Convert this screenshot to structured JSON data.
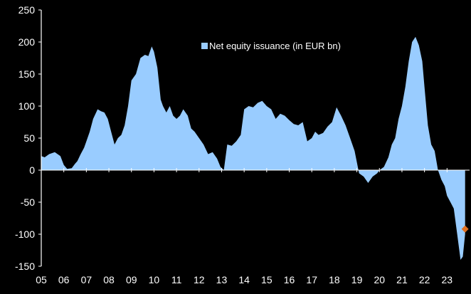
{
  "chart_data": {
    "type": "area",
    "title": "",
    "xlabel": "",
    "ylabel": "",
    "ylim": [
      -150,
      250
    ],
    "xlim": [
      2005.0,
      2024.0
    ],
    "yticks": [
      250,
      200,
      150,
      100,
      50,
      0,
      -50,
      -100,
      -150
    ],
    "xtick_labels": [
      "05",
      "06",
      "07",
      "08",
      "09",
      "10",
      "11",
      "12",
      "13",
      "14",
      "15",
      "16",
      "17",
      "18",
      "19",
      "20",
      "21",
      "22",
      "23"
    ],
    "legend": "top-center",
    "series": [
      {
        "name": "Net equity issuance (in EUR bn)",
        "color": "#99ccff",
        "x": [
          2005.0,
          2005.15,
          2005.35,
          2005.6,
          2005.85,
          2006.0,
          2006.15,
          2006.35,
          2006.5,
          2006.6,
          2006.75,
          2006.9,
          2007.0,
          2007.15,
          2007.3,
          2007.5,
          2007.65,
          2007.8,
          2007.95,
          2008.1,
          2008.25,
          2008.4,
          2008.55,
          2008.7,
          2008.85,
          2009.0,
          2009.2,
          2009.4,
          2009.6,
          2009.75,
          2009.9,
          2010.0,
          2010.15,
          2010.3,
          2010.4,
          2010.55,
          2010.7,
          2010.85,
          2011.0,
          2011.15,
          2011.3,
          2011.5,
          2011.65,
          2011.8,
          2012.0,
          2012.2,
          2012.4,
          2012.6,
          2012.8,
          2012.95,
          2013.1,
          2013.25,
          2013.45,
          2013.65,
          2013.85,
          2014.0,
          2014.2,
          2014.4,
          2014.6,
          2014.8,
          2015.0,
          2015.2,
          2015.4,
          2015.6,
          2015.8,
          2016.0,
          2016.2,
          2016.4,
          2016.6,
          2016.8,
          2017.0,
          2017.15,
          2017.3,
          2017.5,
          2017.7,
          2017.9,
          2018.1,
          2018.3,
          2018.5,
          2018.7,
          2018.9,
          2019.1,
          2019.3,
          2019.5,
          2019.7,
          2019.9,
          2020.0,
          2020.2,
          2020.4,
          2020.55,
          2020.7,
          2020.85,
          2021.0,
          2021.15,
          2021.3,
          2021.45,
          2021.6,
          2021.75,
          2021.9,
          2022.0,
          2022.15,
          2022.3,
          2022.45,
          2022.6,
          2022.75,
          2022.9,
          2023.0,
          2023.15,
          2023.3,
          2023.45,
          2023.6,
          2023.7,
          2023.8
        ],
        "values": [
          22,
          20,
          25,
          28,
          22,
          8,
          2,
          3,
          10,
          14,
          25,
          35,
          45,
          60,
          80,
          95,
          92,
          90,
          80,
          60,
          40,
          50,
          55,
          70,
          100,
          140,
          150,
          175,
          180,
          178,
          193,
          185,
          160,
          110,
          100,
          90,
          100,
          85,
          80,
          85,
          95,
          85,
          65,
          60,
          50,
          40,
          25,
          28,
          18,
          5,
          0,
          40,
          38,
          45,
          55,
          95,
          100,
          98,
          105,
          108,
          100,
          95,
          80,
          88,
          85,
          78,
          72,
          70,
          75,
          45,
          50,
          60,
          55,
          58,
          68,
          75,
          98,
          85,
          70,
          50,
          30,
          -5,
          -10,
          -20,
          -10,
          -5,
          0,
          5,
          20,
          40,
          50,
          80,
          100,
          130,
          170,
          200,
          208,
          195,
          170,
          130,
          70,
          40,
          30,
          0,
          -15,
          -25,
          -40,
          -50,
          -60,
          -100,
          -140,
          -135,
          -100
        ],
        "fill_opacity": 1
      }
    ],
    "forecast_point": {
      "x": 2023.8,
      "y": -92,
      "color": "#e07020"
    }
  }
}
